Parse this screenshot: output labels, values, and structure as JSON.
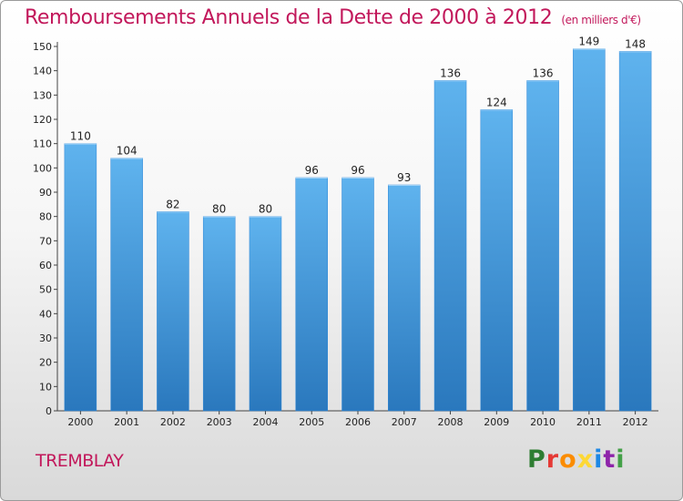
{
  "header": {
    "title": "Remboursements Annuels de la Dette de 2000 à 2012",
    "subtitle": "(en milliers d'€)"
  },
  "footer": {
    "city": "TREMBLAY",
    "logo_text": "Proxiti",
    "logo_colors": [
      "#2e7d32",
      "#e53935",
      "#fb8c00",
      "#fdd835",
      "#1e88e5",
      "#8e24aa",
      "#43a047"
    ]
  },
  "chart_data": {
    "type": "bar",
    "categories": [
      "2000",
      "2001",
      "2002",
      "2003",
      "2004",
      "2005",
      "2006",
      "2007",
      "2008",
      "2009",
      "2010",
      "2011",
      "2012"
    ],
    "values": [
      110,
      104,
      82,
      80,
      80,
      96,
      96,
      93,
      136,
      124,
      136,
      149,
      148
    ],
    "ylim": [
      0,
      150
    ],
    "yticks": [
      0,
      10,
      20,
      30,
      40,
      50,
      60,
      70,
      80,
      90,
      100,
      110,
      120,
      130,
      140,
      150
    ],
    "grid": false,
    "bar_color": "#4a9ee0",
    "xlabel": "",
    "ylabel": ""
  }
}
